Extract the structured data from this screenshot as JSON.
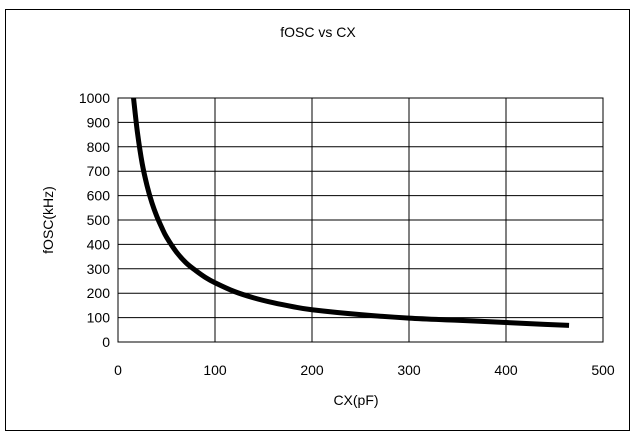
{
  "chart_data": {
    "type": "line",
    "title": "fOSC vs CX",
    "xlabel": "CX(pF)",
    "ylabel": "fOSC(kHz)",
    "xlim": [
      0,
      500
    ],
    "ylim": [
      0,
      1000
    ],
    "x_ticks": [
      "0",
      "100",
      "200",
      "300",
      "400",
      "500"
    ],
    "y_ticks": [
      "0",
      "100",
      "200",
      "300",
      "400",
      "500",
      "600",
      "700",
      "800",
      "900",
      "1000"
    ],
    "grid": true,
    "legend": "none",
    "series": [
      {
        "color": "#000000",
        "x": [
          16,
          20,
          25,
          30,
          35,
          40,
          45,
          50,
          60,
          70,
          80,
          90,
          100,
          120,
          140,
          160,
          180,
          200,
          250,
          300,
          350,
          400,
          440,
          465
        ],
        "y": [
          1000,
          860,
          730,
          640,
          570,
          515,
          470,
          430,
          370,
          325,
          293,
          265,
          243,
          207,
          181,
          161,
          145,
          132,
          112,
          98,
          89,
          80,
          72,
          68
        ]
      }
    ]
  }
}
